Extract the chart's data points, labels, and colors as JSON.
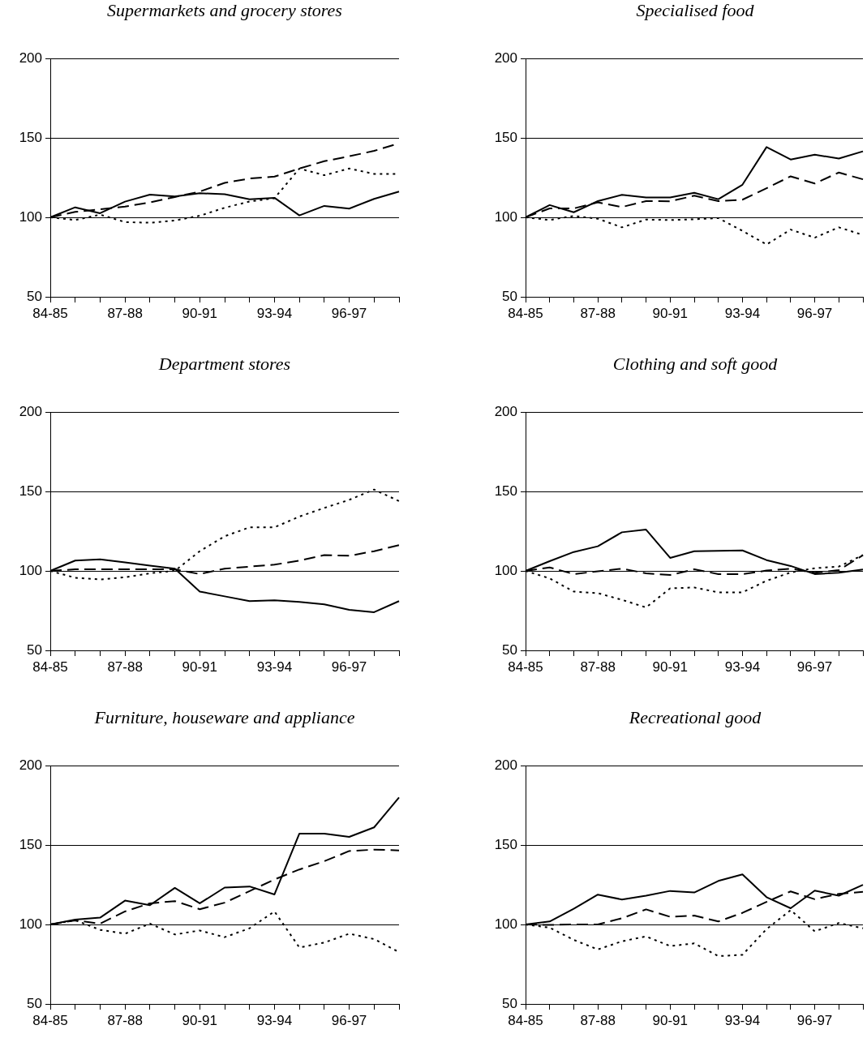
{
  "chart_data": [
    {
      "type": "line",
      "title": "Supermarkets and grocery stores",
      "categories": [
        "84-85",
        null,
        null,
        "87-88",
        null,
        null,
        "90-91",
        null,
        null,
        "93-94",
        null,
        null,
        "96-97",
        null,
        null
      ],
      "ylim": [
        50,
        200
      ],
      "yticks": [
        50,
        100,
        150,
        200
      ],
      "grid": "y",
      "marker": "none",
      "series": [
        {
          "color": "#000000",
          "line_style": "solid",
          "values": [
            100,
            106.3,
            102.6,
            109.9,
            114.3,
            113.1,
            115.2,
            114.5,
            111.4,
            112.3,
            101.2,
            107.2,
            105.5,
            111.6,
            116.2
          ]
        },
        {
          "color": "#000000",
          "line_style": "dashed",
          "values": [
            100,
            103.4,
            105.1,
            106.8,
            109.4,
            112.8,
            116.2,
            121.7,
            124.4,
            125.6,
            130.7,
            135.3,
            138.4,
            141.8,
            146.6
          ]
        },
        {
          "color": "#000000",
          "line_style": "dotted",
          "values": [
            100,
            98.3,
            101.7,
            97,
            96.6,
            98,
            101,
            106,
            110,
            112,
            130.7,
            126.5,
            130.7,
            127.3,
            127.3
          ]
        }
      ]
    },
    {
      "type": "line",
      "title": "Specialised food",
      "categories": [
        "84-85",
        null,
        null,
        "87-88",
        null,
        null,
        "90-91",
        null,
        null,
        "93-94",
        null,
        null,
        "96-97",
        null,
        null
      ],
      "ylim": [
        50,
        200
      ],
      "yticks": [
        50,
        100,
        150,
        200
      ],
      "grid": "y",
      "marker": "none",
      "series": [
        {
          "color": "#000000",
          "line_style": "solid",
          "values": [
            100,
            107.7,
            103.2,
            110.2,
            114.2,
            112.5,
            112.5,
            115.4,
            111.4,
            120.5,
            144.2,
            136.4,
            139.4,
            137,
            141.5
          ]
        },
        {
          "color": "#000000",
          "line_style": "dashed",
          "values": [
            100,
            105.6,
            105.6,
            109.4,
            106.5,
            110.2,
            110.1,
            113.6,
            110.2,
            111.1,
            118.3,
            125.8,
            121.3,
            128.2,
            123.9
          ]
        },
        {
          "color": "#000000",
          "line_style": "dotted",
          "values": [
            100,
            98.3,
            100.9,
            99.1,
            93.7,
            98.6,
            98.3,
            98.8,
            99.5,
            91.5,
            82.9,
            92.3,
            87.2,
            93.7,
            88.9
          ]
        }
      ]
    },
    {
      "type": "line",
      "title": "Department stores",
      "categories": [
        "84-85",
        null,
        null,
        "87-88",
        null,
        null,
        "90-91",
        null,
        null,
        "93-94",
        null,
        null,
        "96-97",
        null,
        null
      ],
      "ylim": [
        50,
        200
      ],
      "yticks": [
        50,
        100,
        150,
        200
      ],
      "grid": "y",
      "marker": "none",
      "series": [
        {
          "color": "#000000",
          "line_style": "solid",
          "values": [
            100,
            106.5,
            107.3,
            105.3,
            103.3,
            101.4,
            87,
            84,
            81,
            81.5,
            80.5,
            79,
            75.5,
            74,
            81
          ]
        },
        {
          "color": "#000000",
          "line_style": "dashed",
          "values": [
            100,
            101,
            101,
            101,
            101,
            101,
            98,
            101.4,
            102.7,
            103.9,
            106.5,
            109.9,
            109.5,
            112.4,
            116.2
          ]
        },
        {
          "color": "#000000",
          "line_style": "dotted",
          "values": [
            100,
            95.7,
            94.6,
            96,
            98.5,
            100,
            112.4,
            121.8,
            127.4,
            127.4,
            134.2,
            139.6,
            144.7,
            151.2,
            143.9
          ]
        }
      ]
    },
    {
      "type": "line",
      "title": "Clothing and soft good",
      "categories": [
        "84-85",
        null,
        null,
        "87-88",
        null,
        null,
        "90-91",
        null,
        null,
        "93-94",
        null,
        null,
        "96-97",
        null,
        null
      ],
      "ylim": [
        50,
        200
      ],
      "yticks": [
        50,
        100,
        150,
        200
      ],
      "grid": "y",
      "marker": "none",
      "series": [
        {
          "color": "#000000",
          "line_style": "solid",
          "values": [
            100,
            106.1,
            111.9,
            115.5,
            124.3,
            126,
            108.2,
            112.4,
            112.6,
            112.9,
            106.8,
            103.1,
            98,
            98.8,
            100.9
          ]
        },
        {
          "color": "#000000",
          "line_style": "dashed",
          "values": [
            100,
            102.2,
            98,
            99.7,
            101.4,
            98.5,
            97.4,
            101,
            98,
            98,
            100.2,
            101.4,
            98.8,
            100.5,
            109.9
          ]
        },
        {
          "color": "#000000",
          "line_style": "dotted",
          "values": [
            100,
            95.3,
            87,
            86,
            81.8,
            77,
            89,
            89.6,
            86.5,
            86.5,
            93.8,
            99,
            101.7,
            102.7,
            110
          ]
        }
      ]
    },
    {
      "type": "line",
      "title": "Furniture, houseware and appliance",
      "categories": [
        "84-85",
        null,
        null,
        "87-88",
        null,
        null,
        "90-91",
        null,
        null,
        "93-94",
        null,
        null,
        "96-97",
        null,
        null
      ],
      "ylim": [
        50,
        200
      ],
      "yticks": [
        50,
        100,
        150,
        200
      ],
      "grid": "y",
      "marker": "none",
      "series": [
        {
          "color": "#000000",
          "line_style": "solid",
          "values": [
            100,
            103.1,
            104.3,
            115,
            112.1,
            123,
            113.3,
            123.2,
            123.9,
            118.9,
            157.2,
            157.2,
            155.1,
            161.1,
            179.9
          ]
        },
        {
          "color": "#000000",
          "line_style": "dashed",
          "values": [
            100,
            102.6,
            100.5,
            108.2,
            113.3,
            114.7,
            109.6,
            113.7,
            121,
            128.3,
            134.6,
            139.8,
            146.2,
            147.1,
            146.6
          ]
        },
        {
          "color": "#000000",
          "line_style": "dotted",
          "values": [
            100,
            102.7,
            96.6,
            94.2,
            100.5,
            93.7,
            96.2,
            92,
            97.6,
            108.2,
            85.5,
            88.6,
            94.2,
            90.8,
            82.6
          ]
        }
      ]
    },
    {
      "type": "line",
      "title": "Recreational good",
      "categories": [
        "84-85",
        null,
        null,
        "87-88",
        null,
        null,
        "90-91",
        null,
        null,
        "93-94",
        null,
        null,
        "96-97",
        null,
        null
      ],
      "ylim": [
        50,
        200
      ],
      "yticks": [
        50,
        100,
        150,
        200
      ],
      "grid": "y",
      "marker": "none",
      "series": [
        {
          "color": "#000000",
          "line_style": "solid",
          "values": [
            100,
            101.9,
            109.9,
            118.8,
            115.7,
            118.1,
            121.1,
            120.1,
            127.4,
            131.5,
            117.2,
            110.2,
            121.3,
            118.1,
            124.9
          ]
        },
        {
          "color": "#000000",
          "line_style": "dashed",
          "values": [
            100,
            99.7,
            100,
            100,
            103.9,
            109.5,
            104.8,
            105.6,
            101.9,
            107.3,
            114.2,
            120.8,
            115.9,
            119.3,
            120.5
          ]
        },
        {
          "color": "#000000",
          "line_style": "dotted",
          "values": [
            100,
            98,
            90.3,
            84.3,
            89.4,
            92.5,
            86.4,
            88.1,
            80.1,
            80.9,
            97.1,
            109,
            95.7,
            100.9,
            97.6
          ]
        }
      ]
    }
  ]
}
